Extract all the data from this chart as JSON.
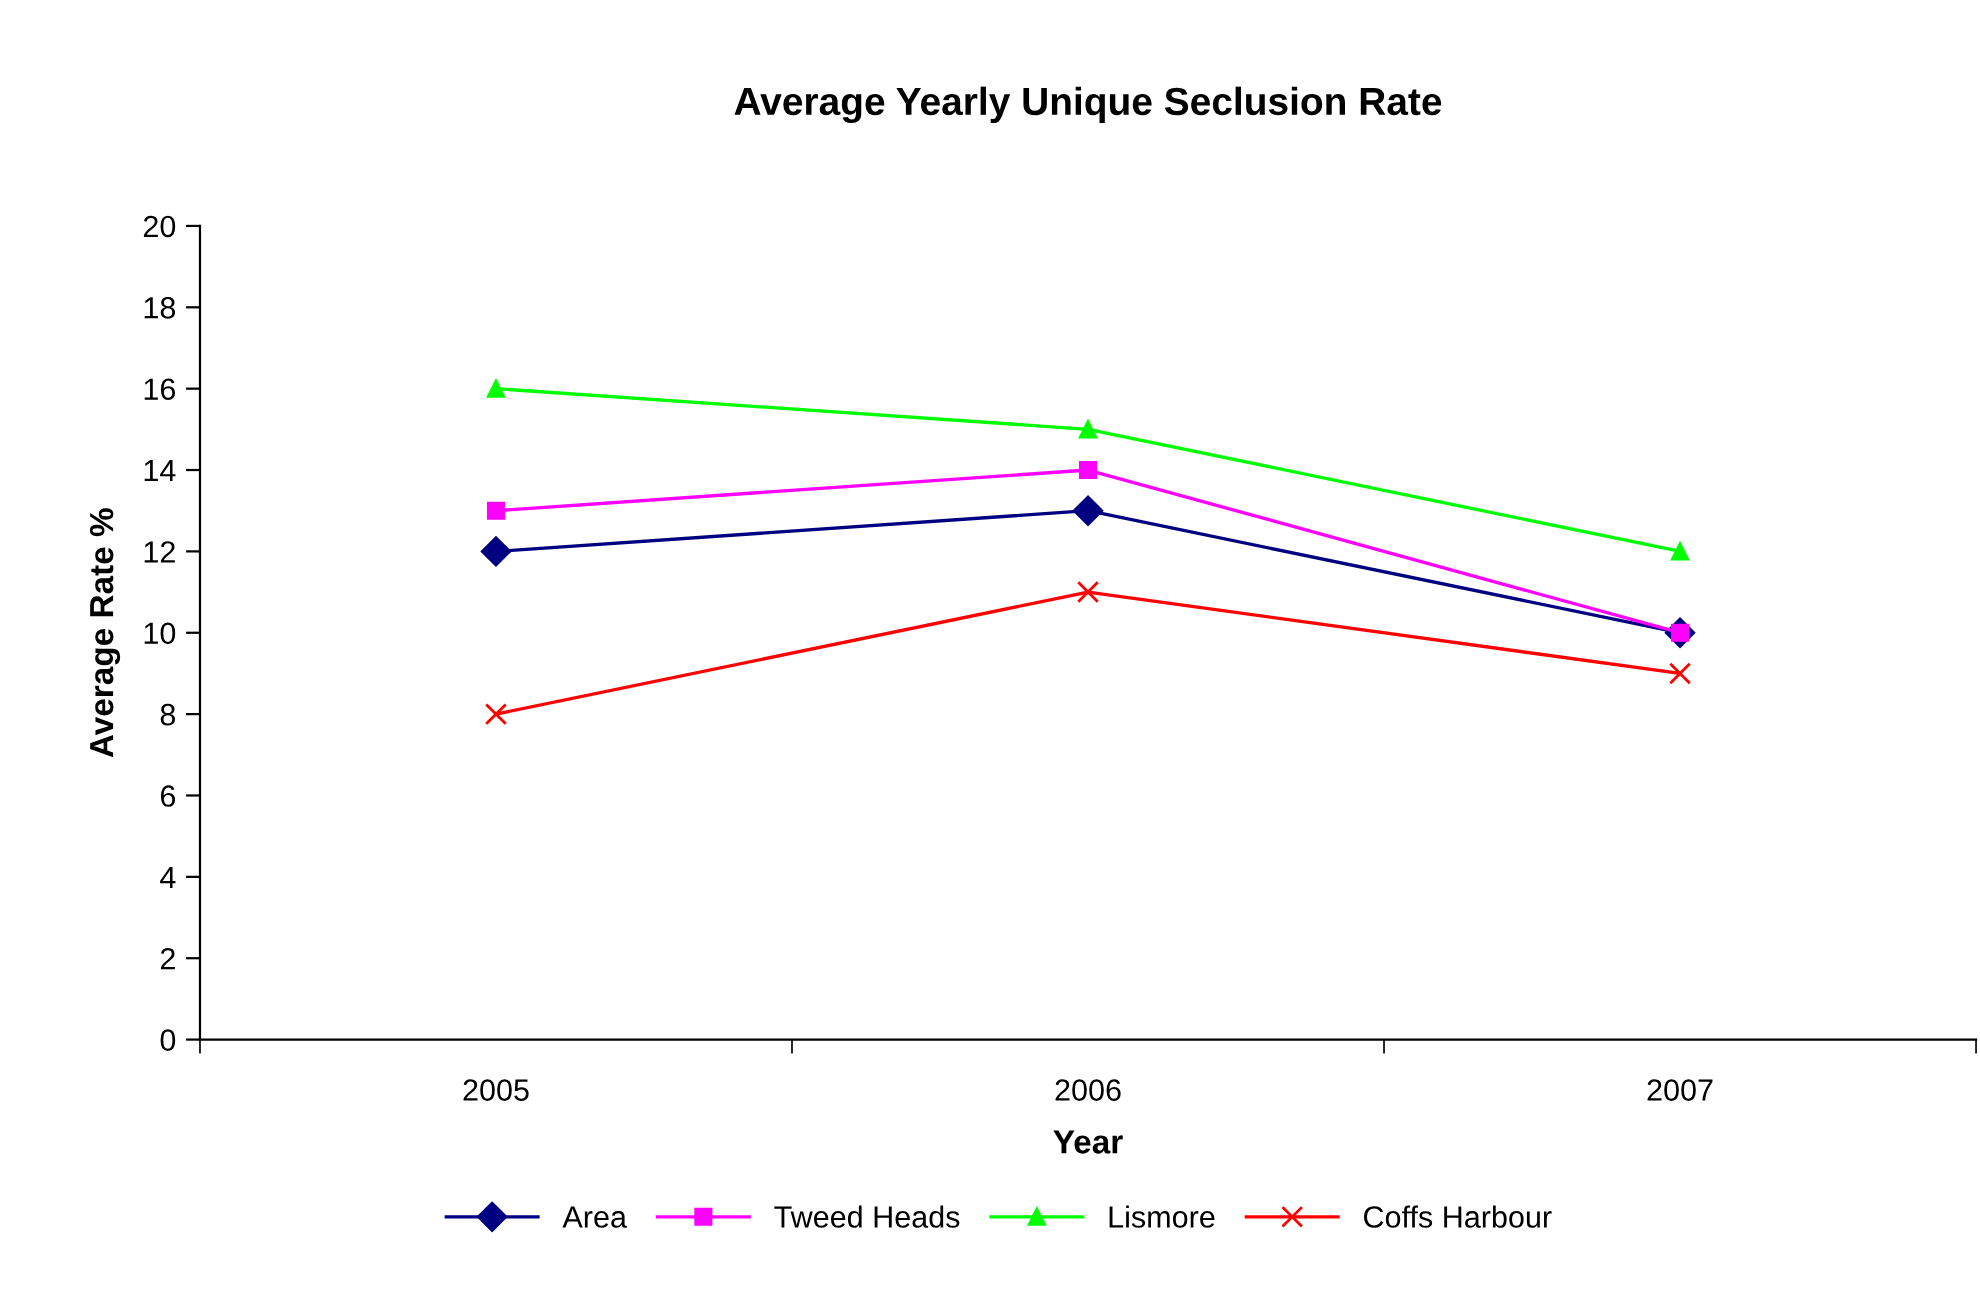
{
  "chart_data": {
    "type": "line",
    "title": "Average Yearly Unique Seclusion Rate",
    "xlabel": "Year",
    "ylabel": "Average Rate %",
    "categories": [
      "2005",
      "2006",
      "2007"
    ],
    "series": [
      {
        "name": "Area",
        "color": "#000080",
        "marker": "diamond",
        "values": [
          12,
          13,
          10
        ]
      },
      {
        "name": "Tweed Heads",
        "color": "#ff00ff",
        "marker": "square",
        "values": [
          13,
          14,
          10
        ]
      },
      {
        "name": "Lismore",
        "color": "#00ff00",
        "marker": "triangle",
        "values": [
          16,
          15,
          12
        ]
      },
      {
        "name": "Coffs Harbour",
        "color": "#ff0000",
        "marker": "cross",
        "values": [
          8,
          11,
          9
        ]
      }
    ],
    "ylim": [
      0,
      20
    ],
    "yticks": [
      0,
      2,
      4,
      6,
      8,
      10,
      12,
      14,
      16,
      18,
      20
    ],
    "grid": false,
    "legend": "bottom",
    "line_style": "solid"
  }
}
